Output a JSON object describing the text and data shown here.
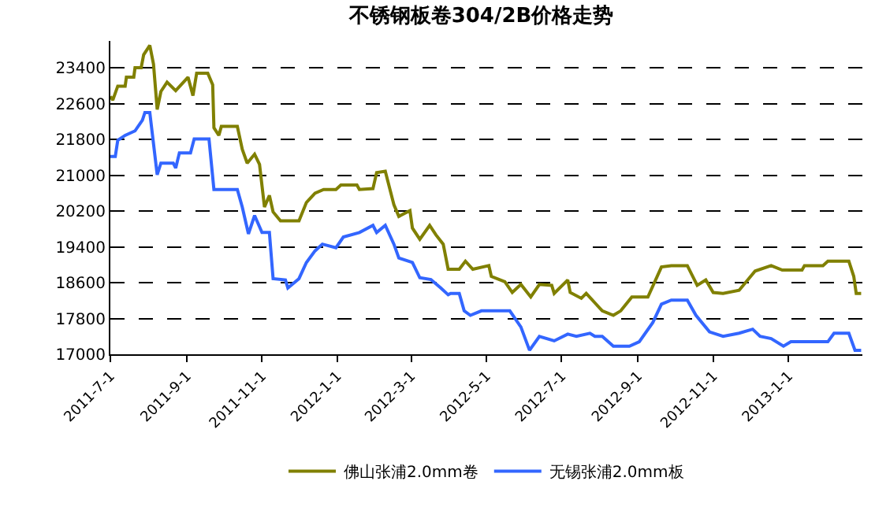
{
  "chart_data": {
    "type": "line",
    "title": "不锈钢板卷304/2B价格走势",
    "ylim": [
      17000,
      24000
    ],
    "yticks": [
      17000,
      17800,
      18600,
      19400,
      20200,
      21000,
      21800,
      22600,
      23400
    ],
    "xlim": [
      "2011-07-01",
      "2013-03-02"
    ],
    "xticks": [
      {
        "value": "2011-07-01",
        "label": "2011-7-1"
      },
      {
        "value": "2011-09-01",
        "label": "2011-9-1"
      },
      {
        "value": "2011-11-01",
        "label": "2011-11-1"
      },
      {
        "value": "2012-01-01",
        "label": "2012-1-1"
      },
      {
        "value": "2012-03-01",
        "label": "2012-3-1"
      },
      {
        "value": "2012-05-01",
        "label": "2012-5-1"
      },
      {
        "value": "2012-07-01",
        "label": "2012-7-1"
      },
      {
        "value": "2012-09-01",
        "label": "2012-9-1"
      },
      {
        "value": "2012-11-01",
        "label": "2012-11-1"
      },
      {
        "value": "2013-01-01",
        "label": "2013-1-1"
      }
    ],
    "grid": "y",
    "legend": "bottom",
    "marker": "none",
    "line_style": "solid",
    "series": [
      {
        "name": "佛山张浦2.0mm卷",
        "color": "#808000",
        "x": [
          "2011-07-01",
          "2011-07-03",
          "2011-07-07",
          "2011-07-13",
          "2011-07-14",
          "2011-07-20",
          "2011-07-21",
          "2011-07-26",
          "2011-07-28",
          "2011-08-02",
          "2011-08-05",
          "2011-08-08",
          "2011-08-11",
          "2011-08-16",
          "2011-08-23",
          "2011-09-02",
          "2011-09-06",
          "2011-09-09",
          "2011-09-18",
          "2011-09-22",
          "2011-09-23",
          "2011-09-27",
          "2011-09-29",
          "2011-10-12",
          "2011-10-16",
          "2011-10-20",
          "2011-10-26",
          "2011-10-30",
          "2011-11-03",
          "2011-11-07",
          "2011-11-10",
          "2011-11-16",
          "2011-12-01",
          "2011-12-07",
          "2011-12-14",
          "2011-12-21",
          "2011-12-31",
          "2012-01-04",
          "2012-01-17",
          "2012-01-19",
          "2012-01-30",
          "2012-02-02",
          "2012-02-09",
          "2012-02-16",
          "2012-02-20",
          "2012-02-29",
          "2012-03-02",
          "2012-03-08",
          "2012-03-16",
          "2012-03-21",
          "2012-03-27",
          "2012-03-31",
          "2012-04-09",
          "2012-04-14",
          "2012-04-20",
          "2012-05-03",
          "2012-05-05",
          "2012-05-16",
          "2012-05-22",
          "2012-05-29",
          "2012-06-06",
          "2012-06-13",
          "2012-06-23",
          "2012-06-25",
          "2012-07-06",
          "2012-07-08",
          "2012-07-17",
          "2012-07-21",
          "2012-08-03",
          "2012-08-12",
          "2012-08-18",
          "2012-08-27",
          "2012-09-09",
          "2012-09-20",
          "2012-09-28",
          "2012-10-11",
          "2012-10-19",
          "2012-10-26",
          "2012-11-01",
          "2012-11-09",
          "2012-11-22",
          "2012-12-05",
          "2012-12-18",
          "2012-12-27",
          "2013-01-12",
          "2013-01-14",
          "2013-01-29",
          "2013-02-02",
          "2013-02-19",
          "2013-02-23",
          "2013-02-25",
          "2013-03-01"
        ],
        "values": [
          22760,
          22680,
          22990,
          22990,
          23190,
          23190,
          23400,
          23400,
          23690,
          23900,
          23480,
          22470,
          22870,
          23080,
          22890,
          23190,
          22780,
          23280,
          23280,
          23020,
          22060,
          21890,
          22090,
          22090,
          21580,
          21270,
          21470,
          21240,
          20290,
          20550,
          20180,
          19980,
          19980,
          20390,
          20600,
          20680,
          20680,
          20780,
          20780,
          20680,
          20700,
          21060,
          21090,
          20340,
          20080,
          20210,
          19820,
          19570,
          19880,
          19670,
          19460,
          18900,
          18900,
          19080,
          18900,
          18980,
          18740,
          18620,
          18380,
          18560,
          18280,
          18560,
          18540,
          18360,
          18660,
          18380,
          18250,
          18360,
          17970,
          17870,
          17970,
          18280,
          18280,
          18950,
          18980,
          18980,
          18540,
          18660,
          18380,
          18360,
          18430,
          18860,
          18980,
          18880,
          18880,
          18980,
          18980,
          19080,
          19080,
          18740,
          18360,
          18360
        ]
      },
      {
        "name": "无锡张浦2.0mm板",
        "color": "#3366ff",
        "x": [
          "2011-07-01",
          "2011-07-05",
          "2011-07-07",
          "2011-07-13",
          "2011-07-21",
          "2011-07-27",
          "2011-07-29",
          "2011-08-02",
          "2011-08-08",
          "2011-08-11",
          "2011-08-21",
          "2011-08-23",
          "2011-08-26",
          "2011-09-04",
          "2011-09-07",
          "2011-09-19",
          "2011-09-23",
          "2011-10-12",
          "2011-10-16",
          "2011-10-21",
          "2011-10-26",
          "2011-11-01",
          "2011-11-07",
          "2011-11-10",
          "2011-11-20",
          "2011-11-22",
          "2011-12-01",
          "2011-12-07",
          "2011-12-14",
          "2011-12-20",
          "2011-12-31",
          "2012-01-06",
          "2012-01-19",
          "2012-01-30",
          "2012-02-02",
          "2012-02-09",
          "2012-02-16",
          "2012-02-20",
          "2012-03-02",
          "2012-03-08",
          "2012-03-17",
          "2012-03-25",
          "2012-03-31",
          "2012-04-02",
          "2012-04-09",
          "2012-04-13",
          "2012-04-18",
          "2012-04-27",
          "2012-05-20",
          "2012-05-29",
          "2012-06-05",
          "2012-06-13",
          "2012-06-25",
          "2012-07-06",
          "2012-07-13",
          "2012-07-24",
          "2012-07-28",
          "2012-08-03",
          "2012-08-12",
          "2012-08-25",
          "2012-09-02",
          "2012-09-13",
          "2012-09-20",
          "2012-09-28",
          "2012-10-11",
          "2012-10-18",
          "2012-10-29",
          "2012-11-09",
          "2012-11-22",
          "2012-12-03",
          "2012-12-09",
          "2012-12-18",
          "2012-12-28",
          "2013-01-03",
          "2013-02-02",
          "2013-02-07",
          "2013-02-19",
          "2013-02-24",
          "2013-03-01"
        ],
        "values": [
          21420,
          21420,
          21780,
          21890,
          21990,
          22230,
          22400,
          22400,
          21010,
          21270,
          21270,
          21160,
          21500,
          21500,
          21810,
          21810,
          20680,
          20680,
          20290,
          19690,
          20100,
          19720,
          19720,
          18690,
          18660,
          18480,
          18690,
          19050,
          19310,
          19460,
          19380,
          19620,
          19720,
          19880,
          19720,
          19880,
          19460,
          19150,
          19050,
          18710,
          18670,
          18480,
          18330,
          18360,
          18360,
          17970,
          17870,
          17970,
          17970,
          17610,
          17090,
          17400,
          17300,
          17450,
          17400,
          17470,
          17400,
          17400,
          17180,
          17180,
          17280,
          17710,
          18120,
          18210,
          18210,
          17870,
          17500,
          17400,
          17470,
          17560,
          17400,
          17350,
          17180,
          17280,
          17280,
          17470,
          17470,
          17090,
          17090
        ]
      }
    ]
  }
}
